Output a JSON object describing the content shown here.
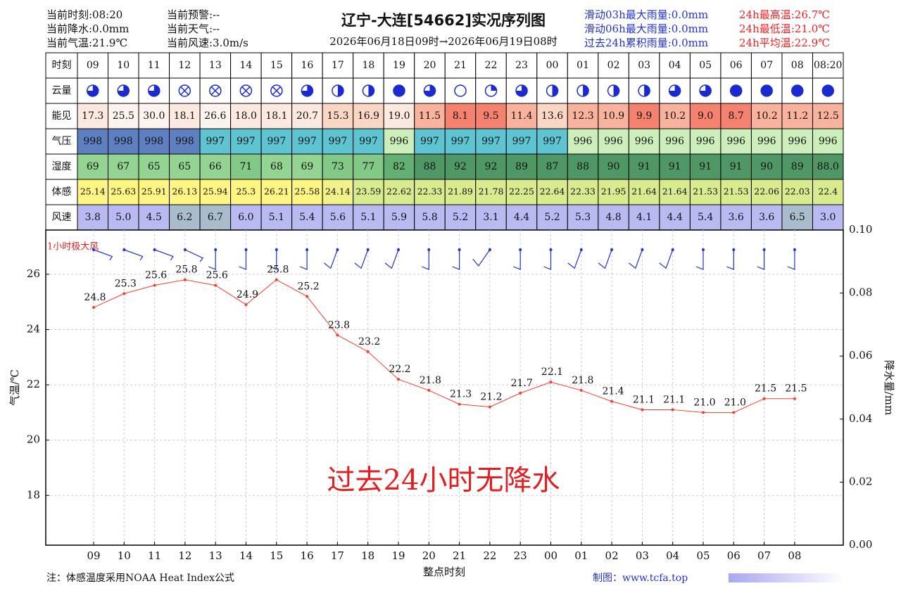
{
  "header": {
    "left": [
      "当前时刻:08:20",
      "当前降水:0.0mm",
      "当前气温:21.9℃"
    ],
    "mid": [
      "当前预警:--",
      "当前天气:--",
      "当前风速:3.0m/s"
    ],
    "title": "辽宁-大连[54662]实况序列图",
    "subtitle": "2026年06月18日09时→2026年06月19日08时",
    "right_blue": [
      "滑动03h最大雨量:0.0mm",
      "滑动06h最大雨量:0.0mm",
      "过去24h累积雨量:0.0mm"
    ],
    "right_red": [
      "24h最高温:26.7℃",
      "24h最低温:21.0℃",
      "24h平均温:22.9℃"
    ]
  },
  "table": {
    "rows": [
      [
        "时刻",
        "09",
        "10",
        "11",
        "12",
        "13",
        "14",
        "15",
        "16",
        "17",
        "18",
        "19",
        "20",
        "21",
        "22",
        "23",
        "00",
        "01",
        "02",
        "03",
        "04",
        "05",
        "06",
        "07",
        "08",
        "08:20"
      ],
      [
        "云量"
      ],
      [
        "能见",
        "17.3",
        "25.5",
        "30.0",
        "18.1",
        "26.6",
        "18.0",
        "18.1",
        "20.7",
        "15.3",
        "16.9",
        "19.0",
        "11.5",
        "8.1",
        "9.5",
        "11.4",
        "13.6",
        "12.3",
        "10.9",
        "9.9",
        "10.2",
        "9.0",
        "8.7",
        "10.2",
        "11.2",
        "12.5"
      ],
      [
        "气压",
        "998",
        "998",
        "998",
        "998",
        "997",
        "997",
        "997",
        "997",
        "997",
        "997",
        "996",
        "997",
        "997",
        "997",
        "997",
        "997",
        "996",
        "996",
        "996",
        "996",
        "996",
        "996",
        "996",
        "996",
        "996"
      ],
      [
        "湿度",
        "69",
        "67",
        "65",
        "65",
        "66",
        "71",
        "68",
        "69",
        "73",
        "77",
        "82",
        "88",
        "92",
        "92",
        "89",
        "87",
        "88",
        "90",
        "91",
        "91",
        "91",
        "91",
        "90",
        "89",
        "88.0"
      ],
      [
        "体感",
        "25.14",
        "25.63",
        "25.91",
        "26.13",
        "25.94",
        "25.3",
        "26.21",
        "25.58",
        "24.14",
        "23.59",
        "22.62",
        "22.33",
        "21.89",
        "21.78",
        "22.25",
        "22.64",
        "22.33",
        "21.95",
        "21.64",
        "21.64",
        "21.53",
        "21.53",
        "22.06",
        "22.03",
        "22.4"
      ],
      [
        "风速",
        "3.8",
        "5.0",
        "4.5",
        "6.2",
        "6.7",
        "6.0",
        "5.1",
        "5.4",
        "5.6",
        "5.1",
        "5.9",
        "5.8",
        "5.2",
        "3.1",
        "4.4",
        "5.2",
        "5.3",
        "4.8",
        "4.1",
        "4.4",
        "5.4",
        "3.6",
        "3.6",
        "6.5",
        "3.0"
      ]
    ],
    "cloud_cover": [
      0.75,
      0.75,
      0.75,
      null,
      null,
      null,
      null,
      0.75,
      0.5,
      0.5,
      1,
      0.75,
      0,
      0.25,
      0.75,
      0.5,
      0.5,
      0.5,
      0.5,
      0.75,
      0.75,
      1,
      1,
      1,
      1
    ]
  },
  "chart_data": {
    "type": "line",
    "categories": [
      "09",
      "10",
      "11",
      "12",
      "13",
      "14",
      "15",
      "16",
      "17",
      "18",
      "19",
      "20",
      "21",
      "22",
      "23",
      "00",
      "01",
      "02",
      "03",
      "04",
      "05",
      "06",
      "07",
      "08"
    ],
    "values": [
      24.8,
      25.3,
      25.6,
      25.8,
      25.6,
      24.9,
      25.8,
      25.2,
      23.8,
      23.2,
      22.2,
      21.8,
      21.3,
      21.2,
      21.7,
      22.1,
      21.8,
      21.4,
      21.1,
      21.1,
      21.0,
      21.0,
      21.5,
      21.5
    ],
    "value_labels": [
      "24.8",
      "25.3",
      "25.6",
      "25.8",
      "25.6",
      "24.9",
      "25.8",
      "25.2",
      "23.8",
      "23.2",
      "22.2",
      "21.8",
      "21.3",
      "21.2",
      "21.7",
      "22.1",
      "21.8",
      "21.4",
      "21.1",
      "21.1",
      "21.0",
      "21.0",
      "21.5",
      "21.5"
    ],
    "color": "#f04030",
    "ylim": [
      16.2,
      27.6
    ],
    "yticks": [
      18,
      20,
      22,
      24,
      26
    ],
    "y2lim": [
      0,
      0.1
    ],
    "y2ticks": [
      {
        "value": 0,
        "label": "0.00"
      },
      {
        "value": 0.02,
        "label": "0.02"
      },
      {
        "value": 0.04,
        "label": "0.04"
      },
      {
        "value": 0.06,
        "label": "0.06"
      },
      {
        "value": 0.08,
        "label": "0.08"
      },
      {
        "value": 0.1,
        "label": "0.10"
      }
    ],
    "grid": true,
    "x_label": "整点时刻",
    "y_label": "气温/℃",
    "y2_label": "降水量/mm",
    "annotation": "过去24小时无降水",
    "wind_label": "1小时极大风",
    "wind_dir": [
      70,
      70,
      70,
      65,
      0,
      0,
      0,
      0,
      -20,
      -20,
      -20,
      0,
      0,
      -35,
      0,
      0,
      -20,
      -20,
      -20,
      -20,
      0,
      0,
      0,
      0
    ]
  },
  "footer": {
    "note": "注：体感温度采用NOAA Heat Index公式",
    "credit": "制图：www.tcfa.top"
  }
}
